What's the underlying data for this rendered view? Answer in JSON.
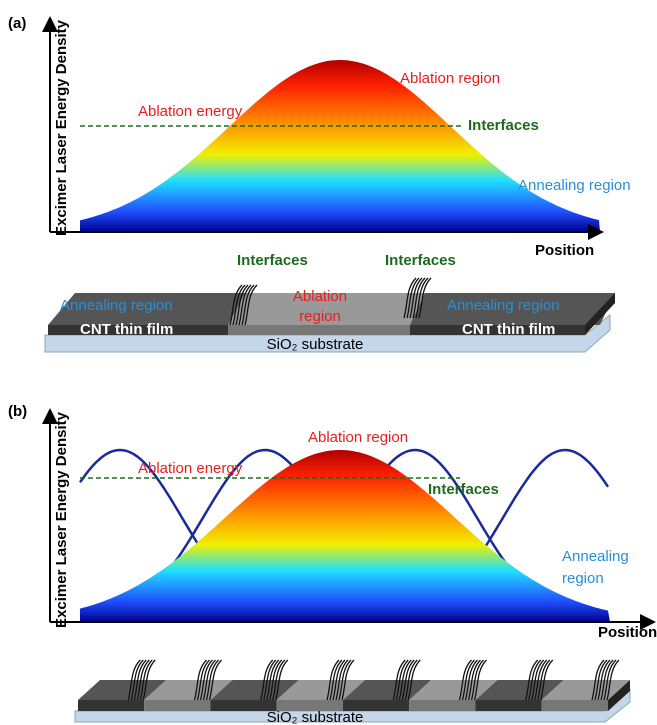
{
  "panel_a": {
    "label": "(a)",
    "y_axis_label": "Excimer Laser Energy Density",
    "x_axis_label": "Position",
    "ablation_region": "Ablation region",
    "ablation_energy": "Ablation energy",
    "interfaces": "Interfaces",
    "annealing_region": "Annealing region",
    "film": {
      "interfaces": [
        "Interfaces",
        "Interfaces"
      ],
      "annealing_regions": [
        "Annealing region",
        "Annealing region"
      ],
      "ablation_region": [
        "Ablation",
        "region"
      ],
      "film_labels": [
        "CNT thin film",
        "CNT thin film"
      ],
      "substrate": "SiO₂ substrate"
    }
  },
  "panel_b": {
    "label": "(b)",
    "y_axis_label": "Excimer Laser Energy Density",
    "x_axis_label": "Position",
    "ablation_region": "Ablation region",
    "ablation_energy": "Ablation energy",
    "interfaces": "Interfaces",
    "annealing_region": [
      "Annealing",
      "region"
    ],
    "film": {
      "substrate": "SiO₂ substrate"
    }
  }
}
